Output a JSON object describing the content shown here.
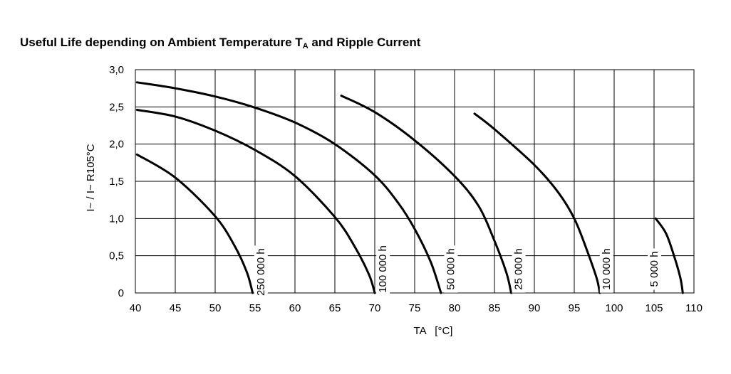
{
  "chart_data": {
    "type": "line",
    "title": {
      "main": "Useful Life depending on Ambient Temperature T",
      "sub": "A",
      "rest": " and Ripple Current"
    },
    "xlabel": "TA   [°C]",
    "ylabel": "I~ / I~ R105°C",
    "xlim": [
      40,
      110
    ],
    "ylim": [
      0,
      3.0
    ],
    "x_ticks": [
      {
        "value": 40,
        "label": "40"
      },
      {
        "value": 45,
        "label": "45"
      },
      {
        "value": 50,
        "label": "50"
      },
      {
        "value": 55,
        "label": "55"
      },
      {
        "value": 60,
        "label": "60"
      },
      {
        "value": 65,
        "label": "65"
      },
      {
        "value": 70,
        "label": "70"
      },
      {
        "value": 75,
        "label": "75"
      },
      {
        "value": 80,
        "label": "80"
      },
      {
        "value": 85,
        "label": "85"
      },
      {
        "value": 90,
        "label": "90"
      },
      {
        "value": 95,
        "label": "95"
      },
      {
        "value": 100,
        "label": "100"
      },
      {
        "value": 105,
        "label": "105"
      },
      {
        "value": 110,
        "label": "110"
      }
    ],
    "y_ticks": [
      {
        "value": 0,
        "label": "0"
      },
      {
        "value": 0.5,
        "label": "0,5"
      },
      {
        "value": 1.0,
        "label": "1,0"
      },
      {
        "value": 1.5,
        "label": "1,5"
      },
      {
        "value": 2.0,
        "label": "2,0"
      },
      {
        "value": 2.5,
        "label": "2,5"
      },
      {
        "value": 3.0,
        "label": "3,0"
      }
    ],
    "grid": true,
    "series": [
      {
        "name": "250 000 h",
        "label_at": {
          "x": 55.7,
          "y": 0.28
        },
        "points": [
          [
            40.2,
            1.86
          ],
          [
            45,
            1.55
          ],
          [
            50,
            1.03
          ],
          [
            52.5,
            0.62
          ],
          [
            54.0,
            0.27
          ],
          [
            54.7,
            0.0
          ]
        ]
      },
      {
        "name": "100 000 h",
        "label_at": {
          "x": 71.0,
          "y": 0.32
        },
        "points": [
          [
            40.2,
            2.46
          ],
          [
            45,
            2.37
          ],
          [
            50,
            2.18
          ],
          [
            55,
            1.92
          ],
          [
            60,
            1.57
          ],
          [
            65,
            1.02
          ],
          [
            67.5,
            0.62
          ],
          [
            69.3,
            0.24
          ],
          [
            70.0,
            0.0
          ]
        ]
      },
      {
        "name": "50 000 h",
        "label_at": {
          "x": 79.5,
          "y": 0.32
        },
        "points": [
          [
            40.2,
            2.83
          ],
          [
            45,
            2.75
          ],
          [
            50,
            2.64
          ],
          [
            55,
            2.49
          ],
          [
            60,
            2.29
          ],
          [
            65,
            2.0
          ],
          [
            70,
            1.58
          ],
          [
            73,
            1.2
          ],
          [
            75,
            0.86
          ],
          [
            77,
            0.42
          ],
          [
            78.3,
            0.0
          ]
        ]
      },
      {
        "name": "25 000 h",
        "label_at": {
          "x": 88.0,
          "y": 0.32
        },
        "points": [
          [
            65.8,
            2.65
          ],
          [
            70,
            2.43
          ],
          [
            75,
            2.05
          ],
          [
            80,
            1.57
          ],
          [
            83,
            1.17
          ],
          [
            85,
            0.7
          ],
          [
            86.5,
            0.27
          ],
          [
            87.1,
            0.0
          ]
        ]
      },
      {
        "name": "10 000 h",
        "label_at": {
          "x": 99.0,
          "y": 0.32
        },
        "points": [
          [
            82.5,
            2.41
          ],
          [
            85,
            2.2
          ],
          [
            90,
            1.72
          ],
          [
            93,
            1.35
          ],
          [
            95,
            1.0
          ],
          [
            96.5,
            0.6
          ],
          [
            97.8,
            0.2
          ],
          [
            98.2,
            0.0
          ]
        ]
      },
      {
        "name": "5 000 h",
        "label_at": {
          "x": 105.0,
          "y": 0.32
        },
        "points": [
          [
            105.2,
            1.0
          ],
          [
            106.5,
            0.8
          ],
          [
            107.5,
            0.5
          ],
          [
            108.3,
            0.2
          ],
          [
            108.6,
            0.0
          ]
        ]
      }
    ]
  }
}
